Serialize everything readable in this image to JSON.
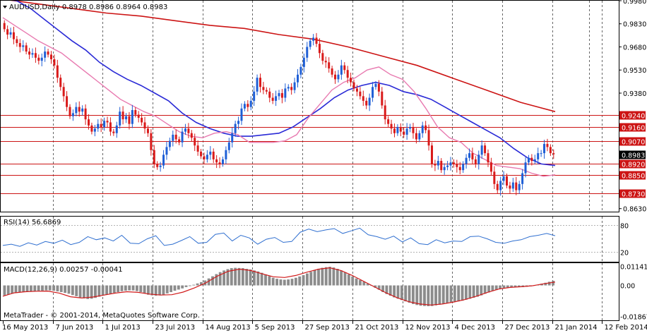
{
  "chart_data": {
    "type": "candlestick",
    "symbol_header": "AUDUSD,Daily  0.8978 0.8986 0.8964 0.8983",
    "price_axis": {
      "ylim": [
        0.8615,
        0.998
      ],
      "ticks": [
        "0.9980",
        "0.9830",
        "0.9680",
        "0.9530",
        "0.9380",
        "0.8630"
      ],
      "level_lines": [
        "0.9240",
        "0.9160",
        "0.9070",
        "0.8920",
        "0.8850",
        "0.8730"
      ],
      "current_price": "0.8983",
      "colors": {
        "up": "#1f5fd6",
        "down": "#d91a1a",
        "ma_fast": "#e87ab0",
        "ma_mid": "#2a2ad6",
        "ma_slow": "#cc1414",
        "level": "#cc1414"
      }
    },
    "x_axis": {
      "tick_labels": [
        "16 May 2013",
        "7 Jun 2013",
        "1 Jul 2013",
        "23 Jul 2013",
        "14 Aug 2013",
        "5 Sep 2013",
        "27 Sep 2013",
        "21 Oct 2013",
        "12 Nov 2013",
        "4 Dec 2013",
        "27 Dec 2013",
        "21 Jan 2014",
        "12 Feb 2014"
      ],
      "bars_per_label": 16
    },
    "closes": [
      0.9795,
      0.976,
      0.9775,
      0.973,
      0.9705,
      0.968,
      0.969,
      0.965,
      0.963,
      0.964,
      0.961,
      0.959,
      0.961,
      0.965,
      0.963,
      0.96,
      0.956,
      0.948,
      0.942,
      0.936,
      0.929,
      0.923,
      0.925,
      0.929,
      0.926,
      0.928,
      0.921,
      0.917,
      0.913,
      0.915,
      0.918,
      0.916,
      0.92,
      0.919,
      0.913,
      0.912,
      0.917,
      0.926,
      0.921,
      0.923,
      0.918,
      0.927,
      0.924,
      0.922,
      0.919,
      0.915,
      0.912,
      0.901,
      0.892,
      0.89,
      0.891,
      0.898,
      0.903,
      0.907,
      0.911,
      0.908,
      0.906,
      0.913,
      0.915,
      0.912,
      0.909,
      0.904,
      0.9,
      0.897,
      0.895,
      0.898,
      0.9,
      0.895,
      0.893,
      0.892,
      0.895,
      0.901,
      0.906,
      0.912,
      0.918,
      0.92,
      0.928,
      0.931,
      0.929,
      0.933,
      0.939,
      0.948,
      0.942,
      0.94,
      0.939,
      0.935,
      0.933,
      0.936,
      0.938,
      0.935,
      0.941,
      0.942,
      0.94,
      0.945,
      0.95,
      0.955,
      0.961,
      0.968,
      0.972,
      0.974,
      0.97,
      0.964,
      0.959,
      0.958,
      0.954,
      0.95,
      0.947,
      0.95,
      0.956,
      0.953,
      0.948,
      0.945,
      0.941,
      0.939,
      0.936,
      0.933,
      0.93,
      0.935,
      0.942,
      0.944,
      0.939,
      0.93,
      0.921,
      0.918,
      0.915,
      0.912,
      0.916,
      0.913,
      0.911,
      0.915,
      0.916,
      0.912,
      0.908,
      0.912,
      0.917,
      0.914,
      0.904,
      0.892,
      0.891,
      0.894,
      0.888,
      0.89,
      0.891,
      0.893,
      0.892,
      0.89,
      0.888,
      0.892,
      0.896,
      0.899,
      0.895,
      0.892,
      0.898,
      0.904,
      0.899,
      0.893,
      0.887,
      0.879,
      0.875,
      0.881,
      0.884,
      0.878,
      0.876,
      0.88,
      0.875,
      0.879,
      0.886,
      0.893,
      0.896,
      0.894,
      0.895,
      0.899,
      0.899,
      0.905,
      0.903,
      0.899,
      0.8983
    ],
    "ma_fast": [
      0.987,
      0.982,
      0.977,
      0.972,
      0.968,
      0.964,
      0.958,
      0.952,
      0.946,
      0.94,
      0.934,
      0.93,
      0.926,
      0.923,
      0.918,
      0.913,
      0.91,
      0.909,
      0.912,
      0.913,
      0.911,
      0.906,
      0.906,
      0.906,
      0.907,
      0.911,
      0.922,
      0.931,
      0.94,
      0.945,
      0.948,
      0.953,
      0.955,
      0.95,
      0.947,
      0.939,
      0.928,
      0.916,
      0.909,
      0.906,
      0.899,
      0.895,
      0.891,
      0.89,
      0.889,
      0.886,
      0.884,
      0.885
    ],
    "ma_mid": [
      0.999,
      0.998,
      0.993,
      0.986,
      0.979,
      0.972,
      0.966,
      0.958,
      0.952,
      0.947,
      0.943,
      0.938,
      0.933,
      0.925,
      0.919,
      0.915,
      0.912,
      0.91,
      0.91,
      0.911,
      0.912,
      0.916,
      0.922,
      0.928,
      0.935,
      0.94,
      0.943,
      0.945,
      0.943,
      0.939,
      0.937,
      0.934,
      0.929,
      0.924,
      0.919,
      0.914,
      0.909,
      0.902,
      0.896,
      0.892,
      0.891
    ],
    "ma_slow": [
      0.999,
      0.996,
      0.993,
      0.99,
      0.988,
      0.985,
      0.982,
      0.98,
      0.976,
      0.973,
      0.968,
      0.962,
      0.956,
      0.948,
      0.94,
      0.932,
      0.926
    ],
    "rsi": {
      "label": "RSI(14) 56.6869",
      "ticks": [
        "80",
        "20"
      ],
      "values": [
        35,
        38,
        33,
        41,
        36,
        44,
        40,
        47,
        37,
        42,
        55,
        48,
        52,
        45,
        58,
        40,
        39,
        50,
        57,
        35,
        38,
        46,
        55,
        40,
        42,
        60,
        63,
        45,
        58,
        52,
        38,
        49,
        53,
        42,
        44,
        65,
        72,
        66,
        70,
        73,
        62,
        68,
        74,
        59,
        55,
        49,
        56,
        43,
        52,
        39,
        37,
        48,
        41,
        45,
        44,
        55,
        56,
        50,
        42,
        40,
        45,
        48,
        55,
        58,
        62,
        57
      ]
    },
    "macd": {
      "label": "MACD(12,26,9) 0.00257 -0.00041",
      "ticks": [
        "0.01141",
        "0.00",
        "-0.01867"
      ],
      "histogram": [
        -0.006,
        -0.0055,
        -0.005,
        -0.0045,
        -0.0042,
        -0.004,
        -0.0038,
        -0.0036,
        -0.0035,
        -0.0033,
        -0.0032,
        -0.003,
        -0.003,
        -0.0032,
        -0.0036,
        -0.004,
        -0.0045,
        -0.005,
        -0.0058,
        -0.0065,
        -0.0072,
        -0.0078,
        -0.0082,
        -0.008,
        -0.0075,
        -0.0068,
        -0.006,
        -0.0055,
        -0.005,
        -0.0045,
        -0.004,
        -0.0035,
        -0.0032,
        -0.003,
        -0.003,
        -0.0034,
        -0.004,
        -0.0048,
        -0.0056,
        -0.006,
        -0.0062,
        -0.006,
        -0.0055,
        -0.0048,
        -0.004,
        -0.0032,
        -0.0025,
        -0.0018,
        -0.001,
        -0.0004,
        0.0004,
        0.0012,
        0.002,
        0.003,
        0.0042,
        0.0055,
        0.0068,
        0.008,
        0.009,
        0.0098,
        0.0104,
        0.0106,
        0.0105,
        0.0104,
        0.01,
        0.0096,
        0.009,
        0.0084,
        0.0076,
        0.0066,
        0.0056,
        0.0046,
        0.004,
        0.0036,
        0.0034,
        0.0036,
        0.004,
        0.0046,
        0.0054,
        0.0062,
        0.0072,
        0.0082,
        0.0092,
        0.01,
        0.0106,
        0.011,
        0.0112,
        0.0108,
        0.01,
        0.009,
        0.0078,
        0.0066,
        0.0054,
        0.0042,
        0.0032,
        0.0022,
        0.001,
        -0.0002,
        -0.0014,
        -0.0026,
        -0.004,
        -0.0052,
        -0.0062,
        -0.0072,
        -0.008,
        -0.0088,
        -0.0096,
        -0.0104,
        -0.0112,
        -0.0118,
        -0.0122,
        -0.0124,
        -0.0125,
        -0.0124,
        -0.012,
        -0.0116,
        -0.0112,
        -0.0108,
        -0.0104,
        -0.01,
        -0.0096,
        -0.0092,
        -0.0086,
        -0.008,
        -0.0074,
        -0.0068,
        -0.006,
        -0.005,
        -0.0042,
        -0.0034,
        -0.0028,
        -0.0022,
        -0.0018,
        -0.0014,
        -0.0012,
        -0.001,
        -0.001,
        -0.001,
        -0.0008,
        -0.0006,
        -0.0002,
        0.0004,
        0.001,
        0.0016,
        0.0022,
        0.0028
      ],
      "signal": [
        -0.0065,
        -0.0045,
        -0.0038,
        -0.0035,
        -0.0034,
        -0.0046,
        -0.0068,
        -0.0076,
        -0.007,
        -0.0058,
        -0.0046,
        -0.0038,
        -0.0042,
        -0.0052,
        -0.0058,
        -0.0056,
        -0.004,
        -0.0015,
        0.0015,
        0.0055,
        0.0085,
        0.0098,
        0.009,
        0.007,
        0.0052,
        0.0048,
        0.006,
        0.008,
        0.0098,
        0.0106,
        0.009,
        0.006,
        0.0025,
        -0.001,
        -0.0045,
        -0.0075,
        -0.0098,
        -0.0112,
        -0.0118,
        -0.0112,
        -0.01,
        -0.0085,
        -0.0065,
        -0.0042,
        -0.0022,
        -0.0012,
        -0.0008,
        -0.0002,
        0.001,
        0.002
      ]
    },
    "copyright": "MetaTrader - © 2001-2014, MetaQuotes Software Corp."
  }
}
